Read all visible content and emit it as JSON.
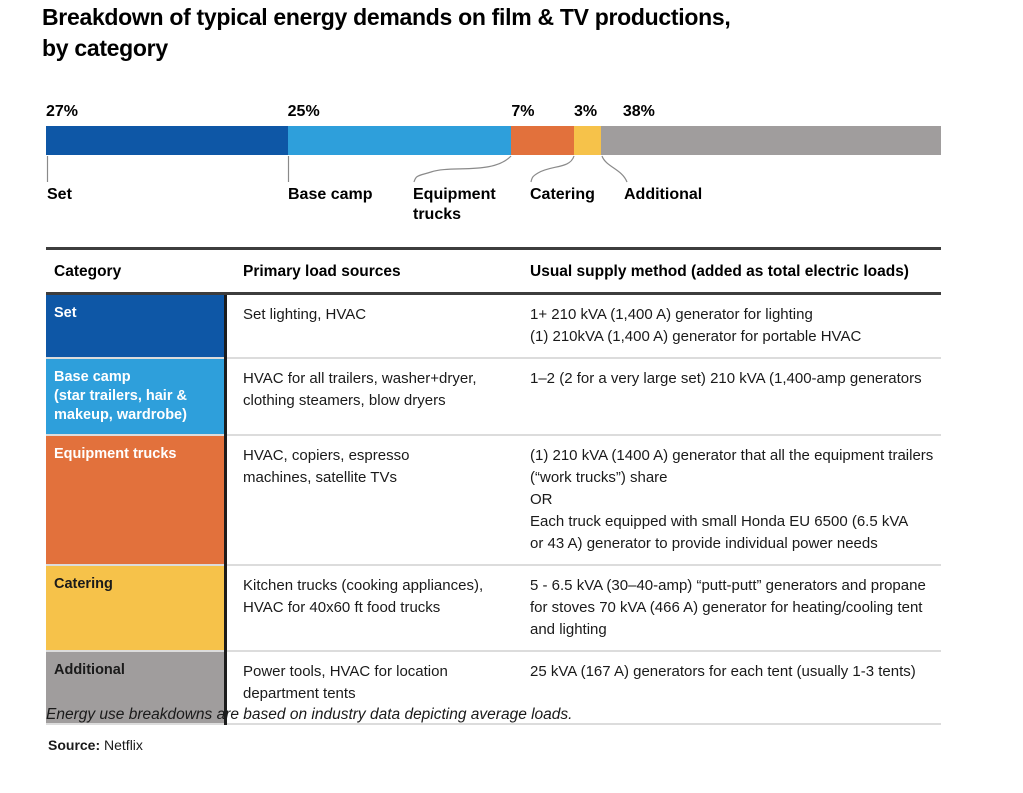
{
  "title": {
    "line1": "Breakdown of typical energy demands on film & TV productions,",
    "line2": "by category"
  },
  "chart_data": {
    "type": "bar",
    "subtype": "horizontal-stacked",
    "categories": [
      "Set",
      "Base camp",
      "Equipment trucks",
      "Catering",
      "Additional"
    ],
    "values": [
      27,
      25,
      7,
      3,
      38
    ],
    "percent_labels": [
      "27%",
      "25%",
      "7%",
      "3%",
      "38%"
    ],
    "colors": [
      "#0E57A6",
      "#2E9FDB",
      "#E2713C",
      "#F6C24A",
      "#A09D9D"
    ],
    "unit": "%",
    "xlim": [
      0,
      100
    ],
    "legend_position": "below-bar-with-leader-lines",
    "grid": false
  },
  "table": {
    "headers": [
      "Category",
      "Primary load sources",
      "Usual supply method (added as total electric loads)"
    ],
    "rows": [
      {
        "category": "Set",
        "load": "Set lighting, HVAC",
        "supply": "1+ 210 kVA (1,400 A) generator for lighting\n(1) 210kVA (1,400 A) generator for portable HVAC",
        "bg": "#0E57A6",
        "fg": "#ffffff"
      },
      {
        "category": "Base camp\n(star trailers, hair &\nmakeup, wardrobe)",
        "load": "HVAC for all trailers, washer+dryer,\nclothing steamers, blow dryers",
        "supply": "1–2 (2 for a very large set) 210 kVA (1,400-amp generators",
        "bg": "#2E9FDB",
        "fg": "#ffffff"
      },
      {
        "category": "Equipment trucks",
        "load": "HVAC, copiers, espresso\nmachines, satellite TVs",
        "supply": "(1) 210 kVA (1400 A) generator that all the equipment trailers\n(“work trucks”) share\nOR\nEach truck equipped with small Honda EU 6500 (6.5 kVA\nor 43 A) generator to provide individual power needs",
        "bg": "#E2713C",
        "fg": "#ffffff"
      },
      {
        "category": "Catering",
        "load": "Kitchen trucks (cooking appliances),\nHVAC for 40x60 ft food trucks",
        "supply": "5 - 6.5 kVA (30–40-amp) “putt-putt” generators and propane\nfor stoves 70 kVA (466 A) generator for heating/cooling tent\nand lighting",
        "bg": "#F6C24A",
        "fg": "#1a1a1a"
      },
      {
        "category": "Additional",
        "load": "Power tools, HVAC for location\ndepartment tents",
        "supply": "25 kVA (167 A) generators for each tent (usually 1-3 tents)",
        "bg": "#A09D9D",
        "fg": "#1a1a1a"
      }
    ]
  },
  "footnote": "Energy use breakdowns are based on industry data depicting average loads.",
  "source": {
    "label": "Source:",
    "value": "Netflix"
  }
}
